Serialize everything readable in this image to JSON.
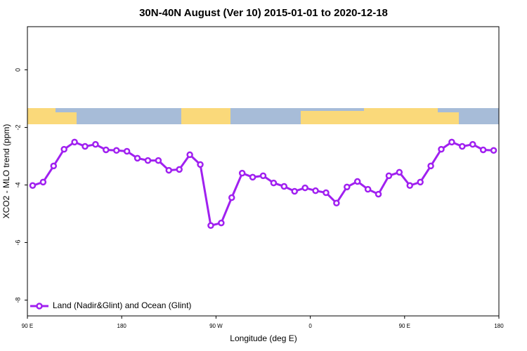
{
  "chart_data": {
    "type": "line",
    "title": "30N-40N August (Ver 10)   2015-01-01 to 2020-12-18",
    "x_label": "Longitude (deg E)",
    "y_label": "XCO2 - MLO trend (ppm)",
    "x": [
      95,
      105,
      115,
      125,
      135,
      145,
      155,
      165,
      175,
      185,
      195,
      205,
      215,
      225,
      235,
      245,
      255,
      265,
      275,
      285,
      295,
      305,
      315,
      325,
      335,
      345,
      355,
      365,
      375,
      385,
      395,
      405,
      415,
      425,
      435,
      445,
      455,
      465,
      475,
      485,
      495,
      505,
      515,
      525,
      535
    ],
    "series": [
      {
        "name": "Land (Nadir&Glint) and Ocean (Glint)",
        "color": "#a020f0",
        "values": [
          -4.02,
          -3.9,
          -3.34,
          -2.76,
          -2.51,
          -2.66,
          -2.59,
          -2.78,
          -2.8,
          -2.83,
          -3.07,
          -3.15,
          -3.15,
          -3.49,
          -3.46,
          -2.95,
          -3.29,
          -5.41,
          -5.32,
          -4.44,
          -3.59,
          -3.73,
          -3.68,
          -3.93,
          -4.05,
          -4.22,
          -4.1,
          -4.2,
          -4.27,
          -4.63,
          -4.07,
          -3.88,
          -4.15,
          -4.32,
          -3.68,
          -3.56,
          -4.02,
          -3.9,
          -3.34,
          -2.76,
          -2.51,
          -2.66,
          -2.59,
          -2.78,
          -2.8
        ]
      }
    ],
    "xlim": [
      90,
      540
    ],
    "xticks": [
      {
        "value": 90,
        "label": "90 E"
      },
      180,
      {
        "value": 270,
        "label": "90 W"
      },
      {
        "value": 360,
        "label": "0"
      },
      {
        "value": 450,
        "label": "90 E"
      },
      {
        "value": 540,
        "label": "180"
      }
    ],
    "ylim": [
      -8.55,
      1.5
    ],
    "yticks": [
      -8,
      -6,
      -4,
      -2,
      0
    ],
    "legend": "bottom-left"
  }
}
